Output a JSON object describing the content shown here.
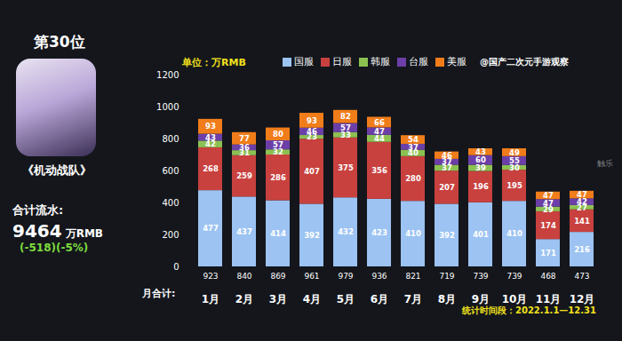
{
  "chart_data": {
    "type": "bar",
    "stacked": true,
    "data_labels": true,
    "grid": false,
    "legend": "top",
    "unit_label": "单位：万RMB",
    "source": "@国产二次元手游观察",
    "period": "统计时间段：2022.1.1—12.31",
    "watermark": "触乐",
    "categories": [
      "1月",
      "2月",
      "3月",
      "4月",
      "5月",
      "6月",
      "7月",
      "8月",
      "9月",
      "10月",
      "11月",
      "12月"
    ],
    "series": [
      {
        "name": "国服",
        "color": "#9cc3f2",
        "values": [
          477,
          437,
          414,
          392,
          432,
          423,
          410,
          392,
          401,
          410,
          171,
          216
        ]
      },
      {
        "name": "日服",
        "color": "#c8413e",
        "values": [
          268,
          259,
          286,
          407,
          375,
          356,
          280,
          207,
          196,
          195,
          174,
          141
        ]
      },
      {
        "name": "韩服",
        "color": "#8cc152",
        "values": [
          42,
          31,
          32,
          23,
          33,
          44,
          40,
          37,
          39,
          30,
          29,
          27
        ]
      },
      {
        "name": "台服",
        "color": "#6c3fa8",
        "values": [
          43,
          36,
          57,
          46,
          57,
          47,
          37,
          37,
          60,
          55,
          47,
          42
        ]
      },
      {
        "name": "美服",
        "color": "#f07d1a",
        "values": [
          93,
          77,
          80,
          93,
          82,
          66,
          54,
          46,
          43,
          49,
          47,
          47
        ]
      }
    ],
    "totals_label": "月合计:",
    "totals": [
      923,
      840,
      869,
      961,
      979,
      936,
      821,
      719,
      739,
      739,
      468,
      473
    ],
    "ylim": [
      0,
      1200
    ],
    "yticks": [
      0,
      200,
      400,
      600,
      800,
      1000,
      1200
    ]
  },
  "panel": {
    "rank": "第30位",
    "game": "《机动战队》",
    "total_label": "合计流水:",
    "total_value": 9464,
    "total_unit": "万RMB",
    "change": "(-518)(-5%)"
  }
}
